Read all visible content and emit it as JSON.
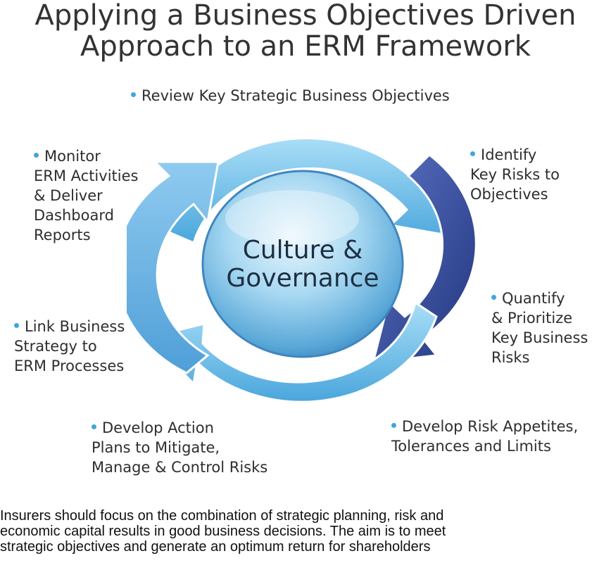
{
  "title": {
    "line1": "Applying a Business Objectives Driven",
    "line2": "Approach to an ERM  Framework"
  },
  "center": {
    "line1": "Culture &",
    "line2": "Governance"
  },
  "steps": [
    {
      "lines": [
        "Review Key Strategic Business Objectives"
      ]
    },
    {
      "lines": [
        "Identify",
        "Key Risks to",
        "Objectives"
      ]
    },
    {
      "lines": [
        "Quantify",
        "& Prioritize",
        "Key Business",
        "Risks"
      ]
    },
    {
      "lines": [
        "Develop Risk Appetites,",
        "Tolerances and Limits"
      ]
    },
    {
      "lines": [
        "Develop Action",
        "Plans to Mitigate,",
        "Manage & Control Risks"
      ]
    },
    {
      "lines": [
        "Link Business",
        "Strategy to",
        "ERM Processes"
      ]
    },
    {
      "lines": [
        "Monitor",
        "ERM Activities",
        "& Deliver",
        "Dashboard",
        "Reports"
      ]
    }
  ],
  "footer": {
    "line1": "Insurers should focus on the combination of strategic planning, risk and",
    "line2": "economic capital results in good business decisions. The aim is to meet",
    "line3": "strategic objectives and generate an optimum return for shareholders"
  },
  "colors": {
    "bullet": "#3ea6dd",
    "ring_light": "#7fcaf0",
    "ring_dark": "#2f4a9a",
    "sphere": "#9fd3ee"
  }
}
